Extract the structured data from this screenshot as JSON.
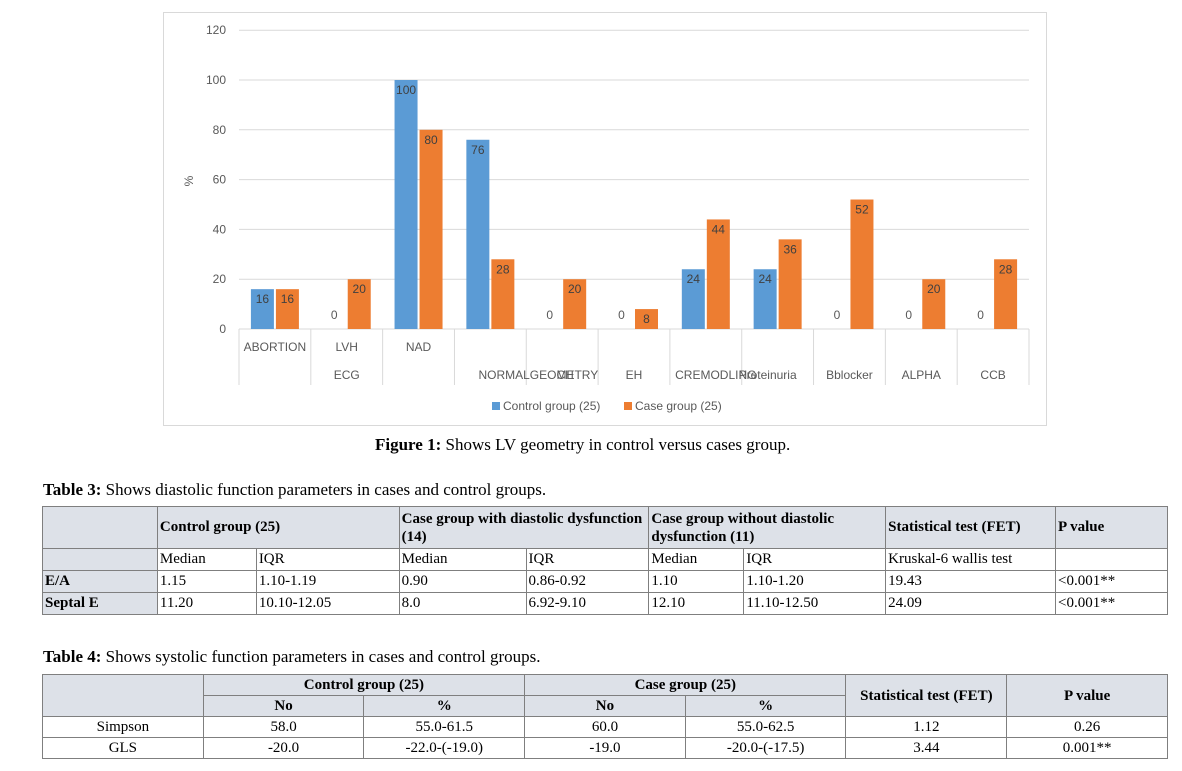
{
  "chart_data": {
    "type": "bar",
    "ylabel": "%",
    "ylim": [
      0,
      120
    ],
    "yticks": [
      0,
      20,
      40,
      60,
      80,
      100,
      120
    ],
    "categories": [
      "ABORTION",
      "LVH",
      "NAD",
      "NORMALGEOMETRY",
      "CH",
      "EH",
      "CREMODLING",
      "Proteinuria",
      "Bblocker",
      "ALPHA",
      "CCB"
    ],
    "extra_labels": [
      "ECG"
    ],
    "series": [
      {
        "name": "Control group (25)",
        "color": "#5b9bd5",
        "values": [
          16,
          0,
          100,
          76,
          0,
          0,
          24,
          24,
          0,
          0,
          0
        ]
      },
      {
        "name": "Case group (25)",
        "color": "#ed7d31",
        "values": [
          16,
          20,
          80,
          28,
          20,
          8,
          44,
          36,
          52,
          20,
          28
        ]
      }
    ],
    "legend": "bottom-center"
  },
  "figure1": {
    "label": "Figure 1:",
    "text": " Shows LV geometry in control versus cases group."
  },
  "table3": {
    "caption_label": "Table 3:",
    "caption_text": " Shows diastolic function parameters in cases and control groups.",
    "groups": [
      "Control group (25)",
      "Case group with diastolic dysfunction (14)",
      "Case group without diastolic dysfunction (11)",
      "Statistical test (FET)",
      "P value"
    ],
    "subheaders": [
      "Median",
      "IQR",
      "Median",
      "IQR",
      "Median",
      "IQR",
      "Kruskal-6 wallis test"
    ],
    "rows": [
      {
        "name": "E/A",
        "cells": [
          "1.15",
          "1.10-1.19",
          "0.90",
          "0.86-0.92",
          "1.10",
          "1.10-1.20",
          "19.43",
          "<0.001**"
        ]
      },
      {
        "name": "Septal E",
        "cells": [
          "11.20",
          "10.10-12.05",
          "8.0",
          "6.92-9.10",
          "12.10",
          "11.10-12.50",
          "24.09",
          "<0.001**"
        ]
      }
    ]
  },
  "table4": {
    "caption_label": "Table 4:",
    "caption_text": " Shows systolic function parameters in cases and control groups.",
    "groups": [
      "Control group (25)",
      "Case group (25)",
      "Statistical test (FET)",
      "P value"
    ],
    "subheaders": [
      "No",
      "%",
      "No",
      "%"
    ],
    "rows": [
      {
        "name": "Simpson",
        "cells": [
          "58.0",
          "55.0-61.5",
          "60.0",
          "55.0-62.5",
          "1.12",
          "0.26"
        ]
      },
      {
        "name": "GLS",
        "cells": [
          "-20.0",
          "-22.0-(-19.0)",
          "-19.0",
          "-20.0-(-17.5)",
          "3.44",
          "0.001**"
        ]
      }
    ]
  }
}
